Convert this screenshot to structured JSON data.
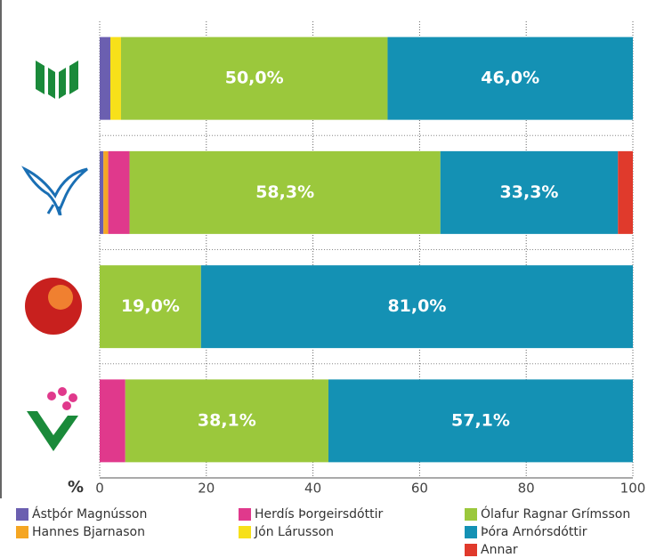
{
  "chart_data": {
    "type": "stacked-bar",
    "orientation": "horizontal",
    "categories": [
      null,
      null,
      null,
      null
    ],
    "xlabel": "%",
    "xlim": [
      0,
      100
    ],
    "xticks": [
      0,
      20,
      40,
      60,
      80,
      100
    ],
    "grid": true,
    "series": [
      {
        "name": "Ástþór Magnússon",
        "color": "#6b5fb0",
        "values": [
          2,
          0.7,
          0,
          0
        ]
      },
      {
        "name": "Hannes Bjarnason",
        "color": "#f5a623",
        "values": [
          0,
          0.9,
          0,
          0
        ]
      },
      {
        "name": "Herdís Þorgeirsdóttir",
        "color": "#e0398c",
        "values": [
          0,
          4,
          0,
          4.8
        ]
      },
      {
        "name": "Jón Lárusson",
        "color": "#f7e01a",
        "values": [
          2,
          0,
          0,
          0
        ]
      },
      {
        "name": "Ólafur Ragnar Grímsson",
        "color": "#9bc83c",
        "values": [
          50,
          58.3,
          19,
          38.1
        ],
        "value_labels": [
          "50,0%",
          "58,3%",
          "19,0%",
          "38,1%"
        ]
      },
      {
        "name": "Þóra Arnórsdóttir",
        "color": "#1491b4",
        "values": [
          46,
          33.3,
          81,
          57.1
        ],
        "value_labels": [
          "46,0%",
          "33,3%",
          "81,0%",
          "57,1%"
        ]
      },
      {
        "name": "Annar",
        "color": "#e03a2c",
        "values": [
          0,
          2.8,
          0,
          0
        ]
      }
    ]
  }
}
